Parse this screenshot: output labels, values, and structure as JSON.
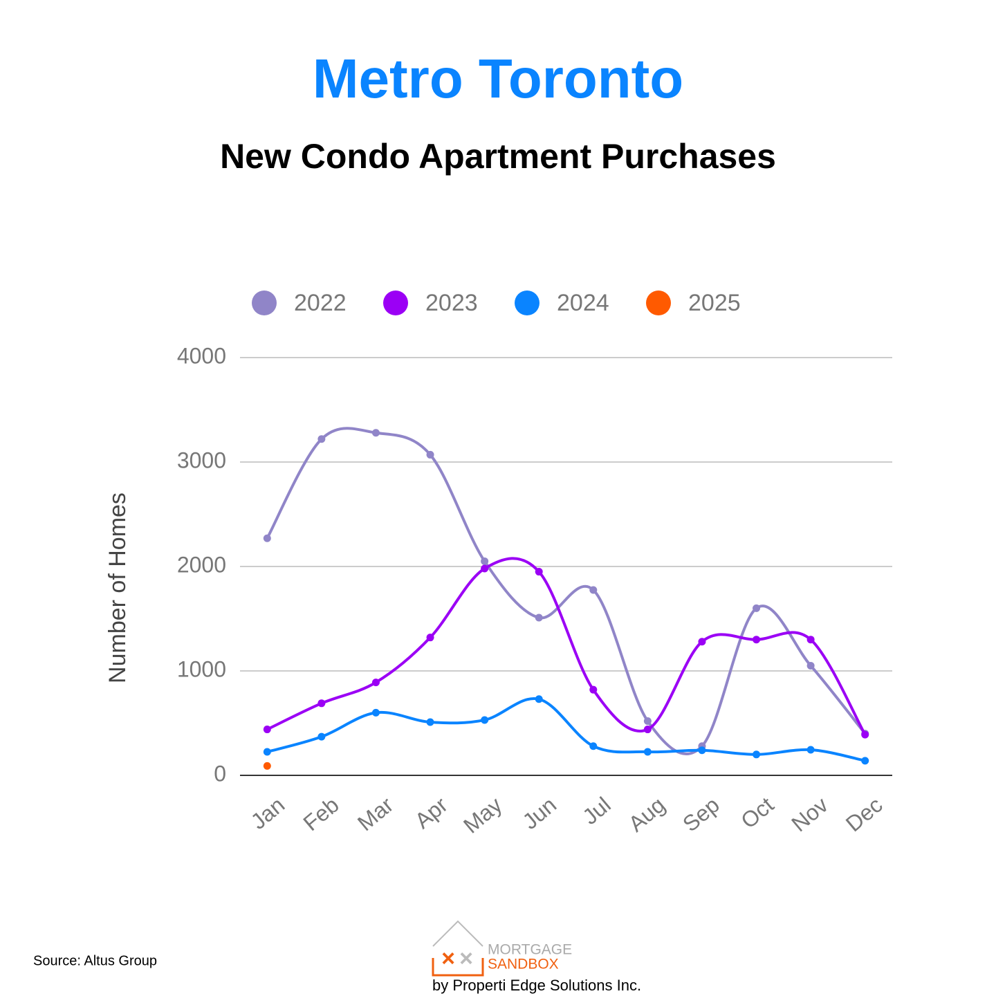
{
  "chart_data": {
    "type": "line",
    "title": "Metro Toronto",
    "subtitle": "New Condo Apartment Purchases",
    "y_label": "Number of Homes",
    "categories": [
      "Jan",
      "Feb",
      "Mar",
      "Apr",
      "May",
      "Jun",
      "Jul",
      "Aug",
      "Sep",
      "Oct",
      "Nov",
      "Dec"
    ],
    "series": [
      {
        "name": "2022",
        "color": "#9085c8",
        "values": [
          2270,
          3220,
          3280,
          3070,
          2050,
          1510,
          1775,
          520,
          280,
          1600,
          1050,
          400
        ]
      },
      {
        "name": "2023",
        "color": "#9b00f5",
        "values": [
          440,
          690,
          890,
          1320,
          1980,
          1950,
          820,
          440,
          1280,
          1300,
          1300,
          390
        ]
      },
      {
        "name": "2024",
        "color": "#0a84ff",
        "values": [
          225,
          370,
          600,
          510,
          530,
          730,
          280,
          225,
          240,
          200,
          245,
          140
        ]
      },
      {
        "name": "2025",
        "color": "#ff5a00",
        "values": [
          90,
          null,
          null,
          null,
          null,
          null,
          null,
          null,
          null,
          null,
          null,
          null
        ]
      }
    ],
    "ylim": [
      0,
      4000
    ],
    "yticks": [
      0,
      1000,
      2000,
      3000,
      4000
    ],
    "grid": true,
    "legend": "top",
    "source": "Source: Altus Group",
    "logo": {
      "line1": "MORTGAGE",
      "line2": "SANDBOX",
      "byline": "by Properti Edge Solutions Inc."
    }
  }
}
